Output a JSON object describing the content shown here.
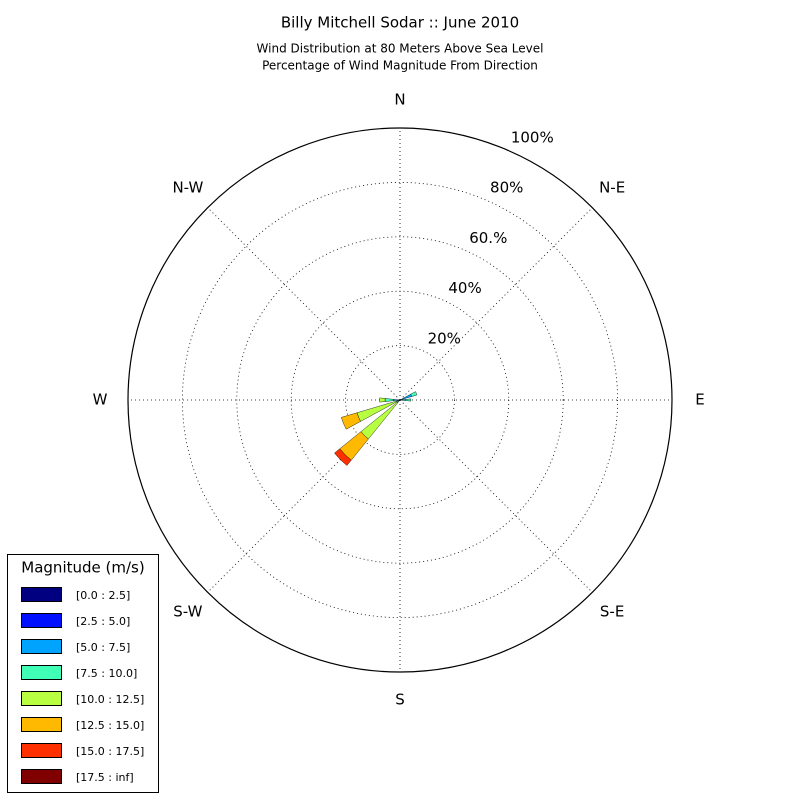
{
  "chart_data": {
    "type": "windrose",
    "title": "Billy Mitchell Sodar :: June 2010",
    "subtitle": [
      "Wind Distribution at 80 Meters Above Sea Level",
      "Percentage of Wind Magnitude From Direction"
    ],
    "direction_labels": [
      "N",
      "N-E",
      "E",
      "S-E",
      "S",
      "S-W",
      "W",
      "N-W"
    ],
    "x": [
      67.5,
      90,
      225,
      247.5,
      270
    ],
    "rlim": [
      0,
      100
    ],
    "rticks": [
      {
        "value": 20,
        "label": "20%"
      },
      {
        "value": 40,
        "label": "40%"
      },
      {
        "value": 60,
        "label": "60.%"
      },
      {
        "value": 80,
        "label": "80%"
      },
      {
        "value": 100,
        "label": "100%"
      }
    ],
    "grid": true,
    "legend_title": "Magnitude (m/s)",
    "legend_position": "lower-left",
    "series": [
      {
        "name": "[0.0 : 2.5]",
        "color": "#000080",
        "values": [
          0,
          0,
          0,
          0,
          0
        ]
      },
      {
        "name": "[2.5 : 5.0]",
        "color": "#0010ff",
        "values": [
          0.5,
          0,
          0,
          0,
          0.5
        ]
      },
      {
        "name": "[5.0 : 7.5]",
        "color": "#00a4ff",
        "values": [
          4,
          2,
          0.5,
          0.5,
          2
        ]
      },
      {
        "name": "[7.5 : 10.0]",
        "color": "#40ffb7",
        "values": [
          2,
          2,
          1,
          1,
          3
        ]
      },
      {
        "name": "[10.0 : 12.5]",
        "color": "#b7ff40",
        "values": [
          0,
          0,
          17,
          15,
          2
        ]
      },
      {
        "name": "[12.5 : 15.0]",
        "color": "#ffb900",
        "values": [
          0,
          0,
          10,
          6,
          0
        ]
      },
      {
        "name": "[15.0 : 17.5]",
        "color": "#ff3000",
        "values": [
          0,
          0,
          2.5,
          0,
          0
        ]
      },
      {
        "name": "[17.5 : inf]",
        "color": "#800000",
        "values": [
          0,
          0,
          0,
          0,
          0
        ]
      }
    ]
  }
}
